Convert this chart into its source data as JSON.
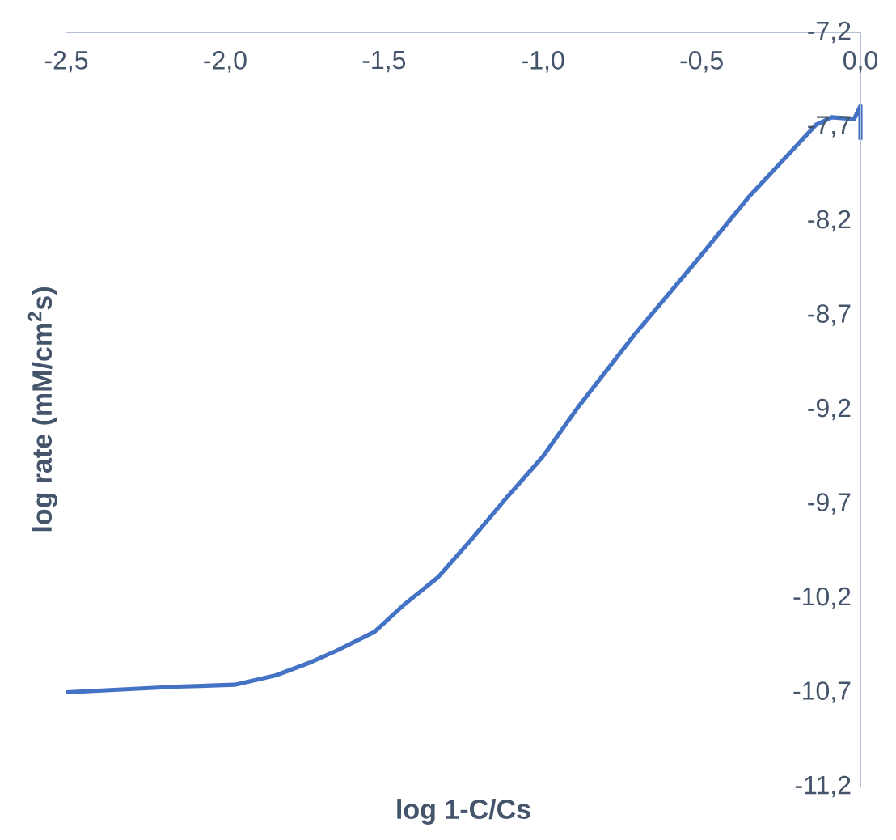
{
  "chart_data": {
    "type": "line",
    "xlabel": "log 1-C/Cs",
    "ylabel": "log rate (mM/cm$^{2}$s)",
    "x": [
      -2.5,
      -2.15,
      -1.97,
      -1.84,
      -1.73,
      -1.65,
      -1.53,
      -1.44,
      -1.33,
      -1.22,
      -1.11,
      -1.0,
      -0.89,
      -0.71,
      -0.52,
      -0.35,
      -0.14,
      -0.09,
      -0.02,
      0.0,
      0.0
    ],
    "series": [
      {
        "color": "#4472c4",
        "values": [
          -10.7,
          -10.67,
          -10.66,
          -10.61,
          -10.54,
          -10.48,
          -10.38,
          -10.24,
          -10.09,
          -9.88,
          -9.66,
          -9.45,
          -9.19,
          -8.8,
          -8.42,
          -8.07,
          -7.69,
          -7.65,
          -7.66,
          -7.59,
          -7.77
        ]
      }
    ],
    "xlim": [
      -2.5,
      0.0
    ],
    "ylim": [
      -11.2,
      -7.2
    ],
    "xticks": [
      {
        "value": -2.5,
        "label": "-2,5"
      },
      {
        "value": -2.0,
        "label": "-2,0"
      },
      {
        "value": -1.5,
        "label": "-1,5"
      },
      {
        "value": -1.0,
        "label": "-1,0"
      },
      {
        "value": -0.5,
        "label": "-0,5"
      },
      {
        "value": 0.0,
        "label": "0,0"
      }
    ],
    "yticks": [
      {
        "value": -7.2,
        "label": "-7,2"
      },
      {
        "value": -7.7,
        "label": "-7,7"
      },
      {
        "value": -8.2,
        "label": "-8,2"
      },
      {
        "value": -8.7,
        "label": "-8,7"
      },
      {
        "value": -9.2,
        "label": "-9,2"
      },
      {
        "value": -9.7,
        "label": "-9,7"
      },
      {
        "value": -10.2,
        "label": "-10,2"
      },
      {
        "value": -10.7,
        "label": "-10,7"
      },
      {
        "value": -11.2,
        "label": "-11,2"
      }
    ],
    "grid": false,
    "marker": "none",
    "line_style": "solid"
  }
}
